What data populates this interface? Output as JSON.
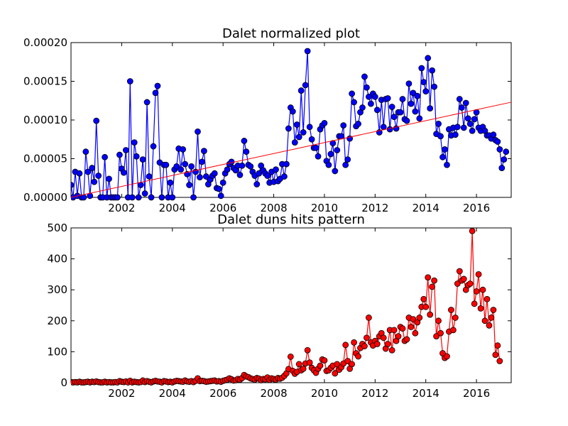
{
  "chart_data": [
    {
      "type": "line",
      "title": "Dalet normalized plot",
      "xlabel": "",
      "ylabel": "",
      "xlim": [
        2000.0,
        2017.37
      ],
      "ylim": [
        0,
        0.0002
      ],
      "x_ticks": [
        "2002",
        "2004",
        "2006",
        "2008",
        "2010",
        "2012",
        "2014",
        "2016"
      ],
      "y_ticks": [
        "0.00000",
        "0.00005",
        "0.00010",
        "0.00015",
        "0.00020"
      ],
      "grid": false,
      "colors": {
        "series": "#0000ff",
        "trend": "#ff0000"
      },
      "series": [
        {
          "marker": "circle",
          "x_start": 2000.0,
          "x_step_months": 1,
          "values": [
            1.6e-05,
            0,
            3.3e-05,
            2e-06,
            3.1e-05,
            0,
            0,
            5.9e-05,
            3.3e-05,
            2e-06,
            3.8e-05,
            2e-05,
            9.9e-05,
            2.8e-05,
            0,
            0,
            5.2e-05,
            0,
            2.4e-05,
            0,
            0,
            0,
            0,
            5.5e-05,
            3.7e-05,
            3.2e-05,
            6.1e-05,
            0,
            0.00015,
            0,
            7.1e-05,
            5.3e-05,
            0,
            1.6e-05,
            4.9e-05,
            5e-06,
            0.000123,
            2.7e-05,
            0,
            6.6e-05,
            0.000135,
            0.000144,
            4.5e-05,
            0,
            4.2e-05,
            4.2e-05,
            0,
            1.9e-05,
            0,
            3.6e-05,
            4e-05,
            6.3e-05,
            3.6e-05,
            6.2e-05,
            4.3e-05,
            3e-05,
            1.6e-05,
            4e-05,
            0,
            3.3e-05,
            8.5e-05,
            2.6e-05,
            4.6e-05,
            6e-05,
            2.7e-05,
            1.7e-05,
            2.3e-05,
            2.8e-05,
            3.1e-05,
            1.2e-05,
            1.1e-05,
            2e-06,
            1.9e-05,
            3.1e-05,
            3.6e-05,
            4.3e-05,
            4.6e-05,
            3.8e-05,
            3.5e-05,
            4.1e-05,
            2.9e-05,
            4.1e-05,
            7.3e-05,
            5.9e-05,
            4.2e-05,
            4e-05,
            3.3e-05,
            2.8e-05,
            1.7e-05,
            3.1e-05,
            4.1e-05,
            3.5e-05,
            3.1e-05,
            2.8e-05,
            1.9e-05,
            3.3e-05,
            2e-05,
            3.6e-05,
            2.1e-05,
            2.4e-05,
            4.3e-05,
            2.7e-05,
            4.3e-05,
            8.9e-05,
            0.000116,
            0.000111,
            7.1e-05,
            9.4e-05,
            7.8e-05,
            0.000138,
            8.4e-05,
            0.000145,
            0.000189,
            9.1e-05,
            7.5e-05,
            6.4e-05,
            6.4e-05,
            5.3e-05,
            8.8e-05,
            9.3e-05,
            9.6e-05,
            4.7e-05,
            4.2e-05,
            5.6e-05,
            7e-05,
            3.4e-05,
            6.1e-05,
            7.9e-05,
            7.9e-05,
            9.3e-05,
            4.2e-05,
            4.9e-05,
            7.6e-05,
            0.000134,
            0.000123,
            9.2e-05,
            9.5e-05,
            0.00011,
            0.000116,
            0.000156,
            0.000142,
            0.00013,
            0.000121,
            0.000134,
            0.00013,
            0.000113,
            8.4e-05,
            0.000126,
            9.1e-05,
            0.000127,
            0.000128,
            8.8e-05,
            0.000117,
            0.000104,
            8.9e-05,
            0.00011,
            0.00011,
            0.000127,
            0.000101,
            9.9e-05,
            0.000147,
            0.000121,
            0.000135,
            0.000111,
            0.000131,
            0.000102,
            0.000167,
            0.000149,
            0.000137,
            0.00018,
            0.000115,
            0.000164,
            0.000143,
            8.2e-05,
            9.5e-05,
            7.9e-05,
            5.2e-05,
            6.2e-05,
            4.2e-05,
            8.8e-05,
            8e-05,
            9e-05,
            8.1e-05,
            9.1e-05,
            0.000127,
            0.000116,
            9e-05,
            0.000122,
            0.000102,
            9.5e-05,
            8.6e-05,
            0.000101,
            0.00011,
            9e-05,
            8.6e-05,
            9.1e-05,
            8.6e-05,
            8e-05,
            8e-05,
            7.6e-05,
            8.1e-05,
            7.4e-05,
            7.2e-05,
            6.2e-05,
            3.8e-05,
            4.9e-05,
            5.9e-05
          ]
        },
        {
          "role": "trend",
          "x": [
            2000.0,
            2017.37
          ],
          "values": [
            0.0,
            0.000123
          ]
        }
      ]
    },
    {
      "type": "line",
      "title": "Dalet duns hits pattern",
      "xlabel": "",
      "ylabel": "",
      "xlim": [
        2000.0,
        2017.37
      ],
      "ylim": [
        0,
        500
      ],
      "x_ticks": [
        "2002",
        "2004",
        "2006",
        "2008",
        "2010",
        "2012",
        "2014",
        "2016"
      ],
      "y_ticks": [
        "0",
        "100",
        "200",
        "300",
        "400",
        "500"
      ],
      "grid": false,
      "colors": {
        "series": "#ff0000"
      },
      "series": [
        {
          "marker": "circle",
          "x_start": 2000.0,
          "x_step_months": 1,
          "values": [
            2,
            1,
            2,
            1,
            3,
            1,
            1,
            2,
            3,
            1,
            3,
            2,
            4,
            2,
            1,
            1,
            3,
            1,
            2,
            1,
            1,
            2,
            1,
            5,
            3,
            2,
            4,
            1,
            6,
            1,
            3,
            2,
            1,
            2,
            7,
            2,
            5,
            3,
            1,
            4,
            6,
            4,
            3,
            1,
            5,
            4,
            2,
            3,
            1,
            4,
            6,
            5,
            4,
            3,
            7,
            4,
            3,
            5,
            2,
            6,
            14,
            5,
            6,
            5,
            3,
            4,
            5,
            6,
            7,
            4,
            5,
            3,
            6,
            8,
            10,
            14,
            11,
            7,
            8,
            12,
            10,
            15,
            25,
            20,
            18,
            14,
            12,
            10,
            15,
            13,
            8,
            12,
            11,
            17,
            9,
            14,
            12,
            10,
            15,
            13,
            16,
            22,
            30,
            44,
            84,
            38,
            29,
            35,
            60,
            40,
            45,
            62,
            105,
            65,
            48,
            40,
            32,
            45,
            55,
            75,
            72,
            38,
            40,
            48,
            55,
            30,
            60,
            42,
            50,
            62,
            122,
            70,
            45,
            60,
            130,
            95,
            85,
            112,
            125,
            118,
            145,
            210,
            130,
            120,
            135,
            125,
            150,
            160,
            145,
            110,
            125,
            170,
            105,
            170,
            135,
            150,
            180,
            175,
            135,
            140,
            210,
            180,
            205,
            160,
            195,
            210,
            245,
            270,
            245,
            340,
            220,
            310,
            330,
            150,
            200,
            160,
            95,
            80,
            85,
            165,
            235,
            170,
            210,
            320,
            360,
            330,
            335,
            300,
            315,
            320,
            490,
            255,
            295,
            350,
            240,
            300,
            200,
            270,
            185,
            210,
            235,
            90,
            120,
            70
          ]
        }
      ]
    }
  ]
}
